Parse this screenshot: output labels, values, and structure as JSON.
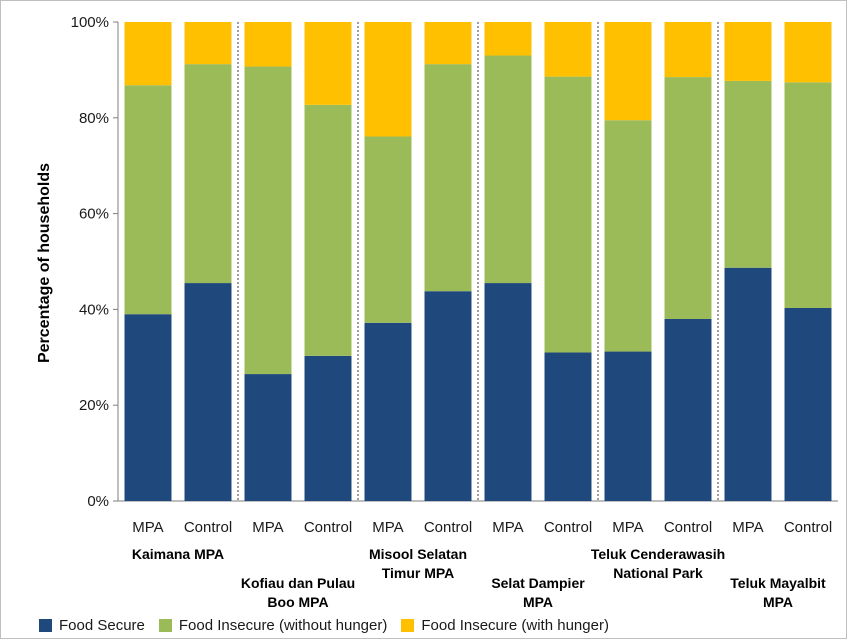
{
  "chart_data": {
    "type": "bar",
    "stacked": true,
    "title": "",
    "xlabel": "",
    "ylabel": "Percentage of households",
    "ylim": [
      0,
      100
    ],
    "yticks": [
      "0%",
      "20%",
      "40%",
      "60%",
      "80%",
      "100%"
    ],
    "grid": false,
    "legend_position": "bottom",
    "categories": [
      "MPA",
      "Control",
      "MPA",
      "Control",
      "MPA",
      "Control",
      "MPA",
      "Control",
      "MPA",
      "Control",
      "MPA",
      "Control"
    ],
    "groups": [
      {
        "label": "Kaimana MPA",
        "lines": [
          "Kaimana MPA"
        ],
        "row": 1
      },
      {
        "label": "Kofiau dan Pulau Boo MPA",
        "lines": [
          "Kofiau dan Pulau",
          "Boo MPA"
        ],
        "row": 2
      },
      {
        "label": "Misool Selatan Timur MPA",
        "lines": [
          "Misool Selatan",
          "Timur MPA"
        ],
        "row": 1
      },
      {
        "label": "Selat Dampier MPA",
        "lines": [
          "Selat Dampier",
          "MPA"
        ],
        "row": 2
      },
      {
        "label": "Teluk Cenderawasih National Park",
        "lines": [
          "Teluk Cenderawasih",
          "National Park"
        ],
        "row": 1
      },
      {
        "label": "Teluk Mayalbit MPA",
        "lines": [
          "Teluk Mayalbit",
          "MPA"
        ],
        "row": 2
      }
    ],
    "series": [
      {
        "name": "Food Secure",
        "color": "#1f497d",
        "values": [
          39,
          45.5,
          26.5,
          30.3,
          37.2,
          43.8,
          45.5,
          31,
          31.2,
          38,
          48.7,
          40.3
        ]
      },
      {
        "name": "Food Insecure (without hunger)",
        "color": "#9bbb59",
        "values": [
          47.8,
          45.7,
          64.2,
          52.4,
          38.9,
          47.4,
          47.5,
          57.6,
          48.3,
          50.5,
          39,
          47.1
        ]
      },
      {
        "name": "Food Insecure (with hunger)",
        "color": "#ffc000",
        "values": [
          13.2,
          8.8,
          9.3,
          17.3,
          23.9,
          8.8,
          7,
          11.4,
          20.5,
          11.5,
          12.3,
          12.6
        ]
      }
    ]
  }
}
